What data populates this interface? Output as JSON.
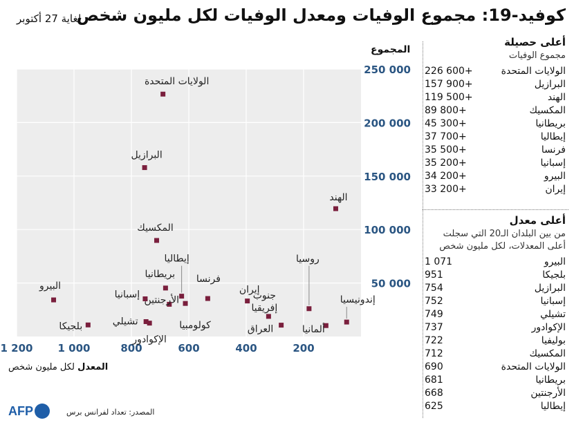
{
  "header": {
    "title": "كوفيد-19: مجموع الوفيات ومعدل الوفيات لكل مليون شخص",
    "date": "لغاية 27 أكتوبر"
  },
  "chart_data": {
    "type": "scatter",
    "ylabel": "المجموع",
    "xlabel_bold": "المعدل",
    "xlabel_rest": "لكل مليون شخص",
    "xlim": [
      1200,
      0
    ],
    "ylim": [
      0,
      250000
    ],
    "x_ticks": [
      "1 200",
      "1 000",
      "800",
      "600",
      "400",
      "200"
    ],
    "y_ticks": [
      "50 000",
      "100 000",
      "150 000",
      "200 000",
      "250 000"
    ],
    "grid": true,
    "color": "#7a1f3d",
    "points": [
      {
        "label": "الولايات المتحدة",
        "x": 690,
        "y": 226600
      },
      {
        "label": "البرازيل",
        "x": 754,
        "y": 157900
      },
      {
        "label": "الهند",
        "x": 88,
        "y": 119500
      },
      {
        "label": "المكسيك",
        "x": 712,
        "y": 89800
      },
      {
        "label": "البيرو",
        "x": 1071,
        "y": 34200
      },
      {
        "label": "بلجيكا",
        "x": 951,
        "y": 10800
      },
      {
        "label": "إسبانيا",
        "x": 752,
        "y": 35200
      },
      {
        "label": "تشيلي",
        "x": 749,
        "y": 13900
      },
      {
        "label": "الإكوادور",
        "x": 737,
        "y": 12500
      },
      {
        "label": "الأرجنتين",
        "x": 668,
        "y": 30100
      },
      {
        "label": "بريطانيا",
        "x": 681,
        "y": 45300
      },
      {
        "label": "إيطاليا",
        "x": 625,
        "y": 37700
      },
      {
        "label": "كولومبيا",
        "x": 612,
        "y": 30900
      },
      {
        "label": "فرنسا",
        "x": 534,
        "y": 35500
      },
      {
        "label": "إيران",
        "x": 396,
        "y": 33200
      },
      {
        "label": "جنوب إفريقيا",
        "x": 322,
        "y": 18800
      },
      {
        "label": "العراق",
        "x": 278,
        "y": 10600
      },
      {
        "label": "روسيا",
        "x": 181,
        "y": 26000
      },
      {
        "label": "ألمانيا",
        "x": 122,
        "y": 10200
      },
      {
        "label": "إندونيسيا",
        "x": 50,
        "y": 13500
      }
    ]
  },
  "panel_total": {
    "title": "أعلى حصيلة",
    "subtitle": "مجموع الوفيات",
    "rows": [
      {
        "country": "الولايات المتحدة",
        "value": "226 600+"
      },
      {
        "country": "البرازيل",
        "value": "157 900+"
      },
      {
        "country": "الهند",
        "value": "119 500+"
      },
      {
        "country": "المكسيك",
        "value": "89 800+"
      },
      {
        "country": "بريطانيا",
        "value": "45 300+"
      },
      {
        "country": "إيطاليا",
        "value": "37 700+"
      },
      {
        "country": "فرنسا",
        "value": "35 500+"
      },
      {
        "country": "إسبانيا",
        "value": "35 200+"
      },
      {
        "country": "البيرو",
        "value": "34 200+"
      },
      {
        "country": "إيران",
        "value": "33 200+"
      }
    ]
  },
  "panel_rate": {
    "title": "أعلى معدل",
    "subtitle": "من بين البلدان الـ20 التي سجلت أعلى المعدلات، لكل مليون شخص",
    "rows": [
      {
        "country": "البيرو",
        "value": "1 071"
      },
      {
        "country": "بلجيكا",
        "value": "951"
      },
      {
        "country": "البرازيل",
        "value": "754"
      },
      {
        "country": "إسبانيا",
        "value": "752"
      },
      {
        "country": "تشيلي",
        "value": "749"
      },
      {
        "country": "الإكوادور",
        "value": "737"
      },
      {
        "country": "بوليفيا",
        "value": "722"
      },
      {
        "country": "المكسيك",
        "value": "712"
      },
      {
        "country": "الولايات المتحدة",
        "value": "690"
      },
      {
        "country": "بريطانيا",
        "value": "681"
      },
      {
        "country": "الأرجنتين",
        "value": "668"
      },
      {
        "country": "إيطاليا",
        "value": "625"
      }
    ]
  },
  "footer": {
    "source": "المصدر: تعداد لفرانس برس",
    "logo_text": "AFP"
  }
}
